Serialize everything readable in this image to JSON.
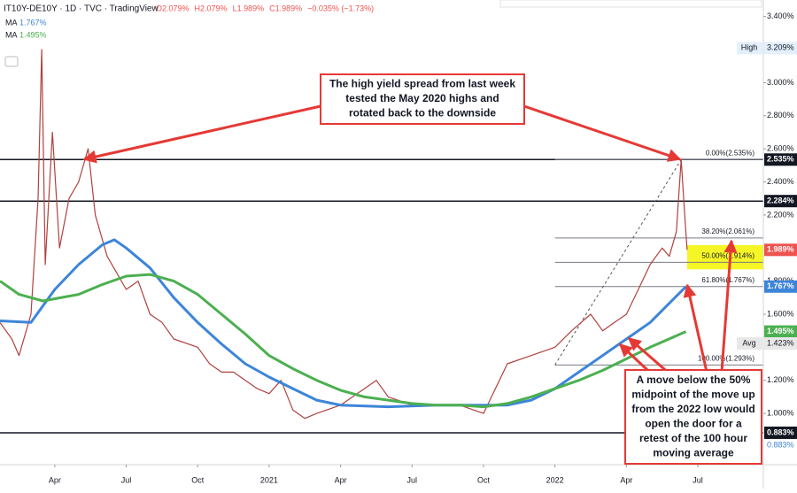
{
  "chart_data": {
    "type": "line",
    "symbol": "IT10Y-DE10Y · 1D · TVC · TradingView",
    "ohlc": [
      "O2.079%",
      "H2.079%",
      "L1.989%",
      "C1.989%",
      "−0.035% (−1.73%)"
    ],
    "xlim": [
      0.7,
      32.75
    ],
    "ylim": [
      0.69,
      3.5
    ],
    "xticks": [
      {
        "value": 3,
        "label": "Apr"
      },
      {
        "value": 6,
        "label": "Jul"
      },
      {
        "value": 9,
        "label": "Oct"
      },
      {
        "value": 12,
        "label": "2021"
      },
      {
        "value": 15,
        "label": "Apr"
      },
      {
        "value": 18,
        "label": "Jul"
      },
      {
        "value": 21,
        "label": "Oct"
      },
      {
        "value": 24,
        "label": "2022"
      },
      {
        "value": 27,
        "label": "Apr"
      },
      {
        "value": 30,
        "label": "Jul"
      }
    ],
    "yticks": [
      {
        "value": 3.4,
        "label": "3.400%"
      },
      {
        "value": 3.0,
        "label": "3.000%"
      },
      {
        "value": 2.8,
        "label": "2.800%"
      },
      {
        "value": 2.6,
        "label": "2.600%"
      },
      {
        "value": 2.4,
        "label": "2.400%"
      },
      {
        "value": 2.2,
        "label": "2.200%"
      },
      {
        "value": 1.8,
        "label": "1.800%"
      },
      {
        "value": 1.6,
        "label": "1.600%"
      },
      {
        "value": 1.2,
        "label": "1.200%"
      },
      {
        "value": 1.0,
        "label": "1.000%"
      }
    ],
    "series": [
      {
        "name": "IT10Y-DE10Y",
        "color": "#b0413e",
        "x": [
          0.7,
          1.2,
          1.5,
          2.0,
          2.3,
          2.45,
          2.6,
          2.9,
          3.2,
          3.6,
          4.0,
          4.4,
          4.7,
          5.2,
          5.6,
          6.0,
          6.5,
          7.0,
          7.5,
          8.0,
          9.0,
          9.5,
          10.0,
          10.5,
          11.0,
          11.5,
          12.0,
          12.5,
          13.0,
          13.5,
          14.0,
          15.0,
          16.0,
          16.5,
          17.0,
          18.0,
          19.0,
          20.0,
          21.0,
          22.0,
          23.0,
          24.0,
          24.7,
          25.5,
          26.0,
          26.5,
          27.0,
          27.5,
          28.0,
          28.5,
          28.8,
          29.1,
          29.3,
          29.45,
          29.55
        ],
        "values": [
          1.55,
          1.45,
          1.35,
          1.6,
          2.3,
          3.2,
          1.9,
          2.7,
          2.0,
          2.3,
          2.4,
          2.6,
          2.2,
          1.95,
          1.85,
          1.75,
          1.8,
          1.6,
          1.55,
          1.45,
          1.4,
          1.3,
          1.25,
          1.25,
          1.2,
          1.15,
          1.12,
          1.2,
          1.02,
          0.97,
          1.0,
          1.05,
          1.15,
          1.2,
          1.1,
          1.05,
          1.05,
          1.05,
          1.0,
          1.3,
          1.35,
          1.4,
          1.5,
          1.6,
          1.5,
          1.55,
          1.6,
          1.75,
          1.9,
          2.0,
          1.95,
          2.1,
          2.535,
          2.2,
          1.989
        ]
      },
      {
        "name": "MA",
        "last_label": "1.767%",
        "color": "#3d85d8",
        "x": [
          0.7,
          2.0,
          3.0,
          4.0,
          5.0,
          5.5,
          6.0,
          7.0,
          8.0,
          9.0,
          10.0,
          11.0,
          12.0,
          13.0,
          14.0,
          15.0,
          17.0,
          19.0,
          21.0,
          22.0,
          23.0,
          24.0,
          25.0,
          26.0,
          27.0,
          28.0,
          29.5
        ],
        "values": [
          1.56,
          1.55,
          1.75,
          1.9,
          2.02,
          2.05,
          2.0,
          1.88,
          1.7,
          1.55,
          1.42,
          1.3,
          1.22,
          1.15,
          1.08,
          1.05,
          1.04,
          1.05,
          1.05,
          1.05,
          1.08,
          1.15,
          1.25,
          1.35,
          1.45,
          1.55,
          1.767
        ]
      },
      {
        "name": "MA",
        "last_label": "1.495%",
        "color": "#4caf50",
        "x": [
          0.7,
          1.5,
          2.5,
          4.0,
          5.0,
          6.0,
          7.0,
          8.0,
          9.0,
          10.0,
          11.0,
          12.0,
          13.0,
          14.0,
          15.0,
          16.0,
          17.0,
          18.0,
          19.0,
          20.0,
          21.0,
          22.0,
          23.0,
          24.0,
          25.0,
          26.0,
          27.0,
          28.0,
          29.5
        ],
        "values": [
          1.8,
          1.72,
          1.68,
          1.72,
          1.78,
          1.83,
          1.84,
          1.8,
          1.72,
          1.6,
          1.48,
          1.35,
          1.27,
          1.2,
          1.14,
          1.1,
          1.08,
          1.06,
          1.05,
          1.05,
          1.04,
          1.06,
          1.1,
          1.15,
          1.2,
          1.26,
          1.33,
          1.4,
          1.495
        ]
      }
    ],
    "hlines": [
      2.535,
      2.284,
      0.883
    ],
    "fib_levels": [
      {
        "value": 2.535,
        "label": "0.00%(2.535%)"
      },
      {
        "value": 2.061,
        "label": "38.20%(2.061%)"
      },
      {
        "value": 1.914,
        "label": "50.00%(1.914%)"
      },
      {
        "value": 1.767,
        "label": "61.80%(1.767%)"
      },
      {
        "value": 1.293,
        "label": "100.00%(1.293%)"
      }
    ],
    "price_tags": [
      {
        "value": 3.209,
        "label": "3.209%",
        "caption": "High",
        "color": "#e3effd"
      },
      {
        "value": 2.535,
        "label": "2.535%",
        "color": "#131722"
      },
      {
        "value": 2.284,
        "label": "2.284%",
        "color": "#131722"
      },
      {
        "value": 1.989,
        "label": "1.989%",
        "color": "#ef5350"
      },
      {
        "value": 1.767,
        "label": "1.767%",
        "color": "#3d85d8"
      },
      {
        "value": 1.495,
        "label": "1.495%",
        "color": "#4caf50"
      },
      {
        "value": 1.423,
        "label": "1.423%",
        "caption": "Avg",
        "color": "#e8e8e8"
      },
      {
        "value": 0.883,
        "label": "0.883%",
        "color": "#131722"
      },
      {
        "value": 0.883,
        "label": "0.883%"
      }
    ],
    "annotations": [
      {
        "lines": [
          "The high yield spread from last week",
          "tested the May 2020 highs and",
          "rotated back to the downside"
        ]
      },
      {
        "lines": [
          "A move below the 50%",
          "midpoint of the move up",
          "from the 2022 low would",
          "open the door for a",
          "retest of the 100 hour",
          "moving average"
        ]
      }
    ]
  }
}
